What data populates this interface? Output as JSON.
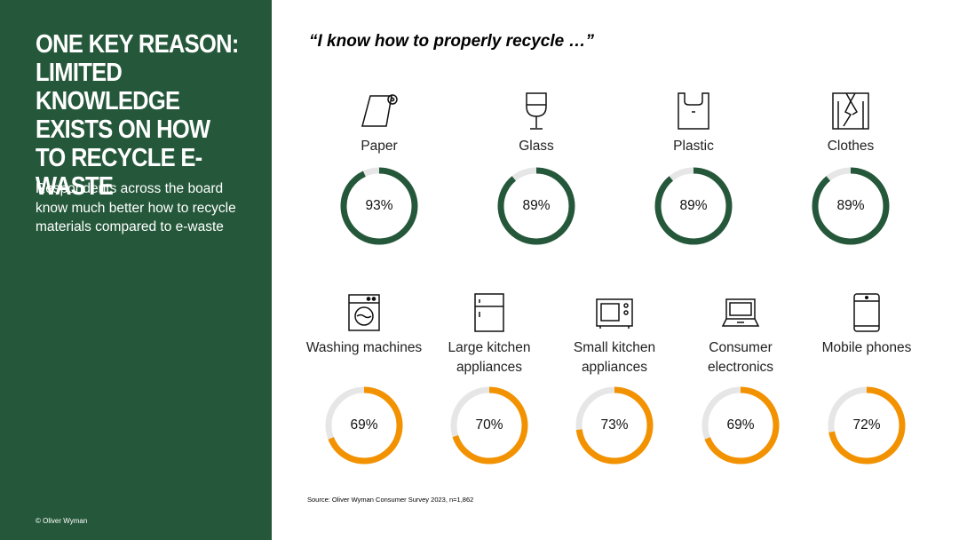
{
  "sidebar": {
    "headline": "ONE KEY REASON: LIMITED KNOWLEDGE EXISTS ON HOW TO RECYCLE E-WASTE",
    "subtext": "Respondents across the board know much better how to recycle materials compared to e-waste",
    "copyright": "© Oliver Wyman"
  },
  "quote": "“I know how to properly recycle …”",
  "source": "Source: Oliver Wyman Consumer Survey 2023, n=1,862",
  "colors": {
    "sidebar": "#25583a",
    "materials_ring": "#25583a",
    "ewaste_ring": "#f39200",
    "ring_track": "#e6e6e6"
  },
  "chart_data": [
    {
      "type": "donut",
      "title": "",
      "unit": "%",
      "categories": [
        "Paper",
        "Glass",
        "Plastic",
        "Clothes"
      ],
      "values": [
        93,
        89,
        89,
        89
      ],
      "labels": [
        "93%",
        "89%",
        "89%",
        "89%"
      ],
      "icons": [
        "paper-roll-icon",
        "wine-glass-icon",
        "plastic-bag-icon",
        "shirt-icon"
      ],
      "color": "#25583a"
    },
    {
      "type": "donut",
      "title": "",
      "unit": "%",
      "categories": [
        "Washing machines",
        "Large kitchen appliances",
        "Small kitchen appliances",
        "Consumer electronics",
        "Mobile phones"
      ],
      "values": [
        69,
        70,
        73,
        69,
        72
      ],
      "labels": [
        "69%",
        "70%",
        "73%",
        "69%",
        "72%"
      ],
      "icons": [
        "washing-machine-icon",
        "fridge-icon",
        "microwave-icon",
        "laptop-icon",
        "mobile-phone-icon"
      ],
      "color": "#f39200"
    }
  ]
}
